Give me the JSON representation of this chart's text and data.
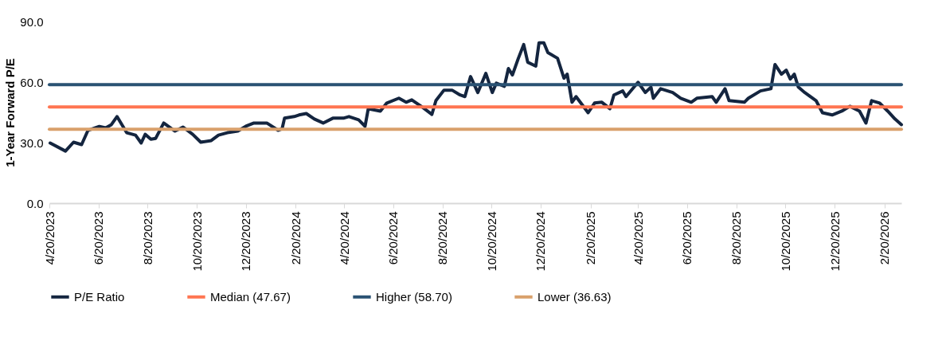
{
  "chart_data": {
    "type": "line",
    "ylabel": "1-Year Forward P/E",
    "xlim": [
      "2023-04-20",
      "2026-03-13"
    ],
    "ylim": [
      0,
      90
    ],
    "yticks": [
      {
        "value": 0,
        "label": "0.0"
      },
      {
        "value": 30,
        "label": "30.0"
      },
      {
        "value": 60,
        "label": "60.0"
      },
      {
        "value": 90,
        "label": "90.0"
      }
    ],
    "xticks": [
      {
        "value": "2023-04-20",
        "label": "4/20/2023"
      },
      {
        "value": "2023-06-20",
        "label": "6/20/2023"
      },
      {
        "value": "2023-08-20",
        "label": "8/20/2023"
      },
      {
        "value": "2023-10-20",
        "label": "10/20/2023"
      },
      {
        "value": "2023-12-20",
        "label": "12/20/2023"
      },
      {
        "value": "2024-02-20",
        "label": "2/20/2024"
      },
      {
        "value": "2024-04-20",
        "label": "4/20/2024"
      },
      {
        "value": "2024-06-20",
        "label": "6/20/2024"
      },
      {
        "value": "2024-08-20",
        "label": "8/20/2024"
      },
      {
        "value": "2024-10-20",
        "label": "10/20/2024"
      },
      {
        "value": "2024-12-20",
        "label": "12/20/2024"
      },
      {
        "value": "2025-02-20",
        "label": "2/20/2025"
      },
      {
        "value": "2025-04-20",
        "label": "4/20/2025"
      },
      {
        "value": "2025-06-20",
        "label": "6/20/2025"
      },
      {
        "value": "2025-08-20",
        "label": "8/20/2025"
      },
      {
        "value": "2025-10-20",
        "label": "10/20/2025"
      },
      {
        "value": "2025-12-20",
        "label": "12/20/2025"
      },
      {
        "value": "2026-02-20",
        "label": "2/20/2026"
      }
    ],
    "legend": "bottom",
    "series": [
      {
        "name": "P/E Ratio",
        "color": "#14253f",
        "x": [
          "2023-04-21",
          "2023-05-10",
          "2023-05-20",
          "2023-05-30",
          "2023-06-07",
          "2023-06-21",
          "2023-06-29",
          "2023-07-06",
          "2023-07-13",
          "2023-07-25",
          "2023-08-05",
          "2023-08-12",
          "2023-08-17",
          "2023-08-24",
          "2023-08-30",
          "2023-09-09",
          "2023-09-23",
          "2023-10-03",
          "2023-10-15",
          "2023-10-25",
          "2023-11-07",
          "2023-11-16",
          "2023-11-27",
          "2023-12-10",
          "2023-12-20",
          "2023-12-30",
          "2024-01-15",
          "2024-01-29",
          "2024-02-03",
          "2024-02-06",
          "2024-02-18",
          "2024-02-24",
          "2024-03-04",
          "2024-03-14",
          "2024-03-25",
          "2024-04-06",
          "2024-04-19",
          "2024-04-26",
          "2024-05-08",
          "2024-05-16",
          "2024-05-20",
          "2024-06-04",
          "2024-06-12",
          "2024-06-27",
          "2024-07-06",
          "2024-07-13",
          "2024-07-26",
          "2024-08-07",
          "2024-08-12",
          "2024-08-22",
          "2024-09-01",
          "2024-09-11",
          "2024-09-17",
          "2024-09-24",
          "2024-10-03",
          "2024-10-13",
          "2024-10-21",
          "2024-10-26",
          "2024-11-05",
          "2024-11-10",
          "2024-11-15",
          "2024-11-22",
          "2024-11-29",
          "2024-12-04",
          "2024-12-14",
          "2024-12-18",
          "2024-12-24",
          "2024-12-29",
          "2025-01-10",
          "2025-01-18",
          "2025-01-22",
          "2025-01-28",
          "2025-02-02",
          "2025-02-17",
          "2025-02-25",
          "2025-03-06",
          "2025-03-16",
          "2025-03-21",
          "2025-04-01",
          "2025-04-05",
          "2025-04-20",
          "2025-04-29",
          "2025-05-06",
          "2025-05-09",
          "2025-05-18",
          "2025-06-02",
          "2025-06-12",
          "2025-06-25",
          "2025-07-02",
          "2025-07-21",
          "2025-07-26",
          "2025-08-06",
          "2025-08-11",
          "2025-08-30",
          "2025-09-04",
          "2025-09-19",
          "2025-10-02",
          "2025-10-07",
          "2025-10-15",
          "2025-10-21",
          "2025-10-26",
          "2025-10-31",
          "2025-11-05",
          "2025-11-13",
          "2025-11-27",
          "2025-12-05",
          "2025-12-17",
          "2025-12-29",
          "2026-01-08",
          "2026-01-20",
          "2026-01-28",
          "2026-02-04",
          "2026-02-14",
          "2026-02-24",
          "2026-03-05",
          "2026-03-13"
        ],
        "values": [
          29.8,
          25.8,
          30.2,
          29,
          36.1,
          38,
          37.3,
          38.9,
          42.9,
          34.9,
          33.7,
          29.8,
          34.1,
          31.7,
          32.1,
          39.7,
          35.7,
          37.7,
          34.1,
          30.2,
          31,
          33.7,
          34.9,
          35.7,
          38.1,
          39.7,
          39.7,
          36.1,
          36.9,
          42.1,
          42.9,
          43.7,
          44.4,
          41.7,
          39.7,
          42.1,
          42.1,
          42.9,
          41.3,
          38.1,
          46.8,
          45.6,
          49.6,
          52,
          50,
          51.2,
          47.6,
          44,
          50.8,
          56,
          56,
          53.6,
          52.8,
          62.7,
          54.8,
          64.3,
          54.8,
          59.5,
          57.9,
          66.7,
          63.5,
          71.4,
          78.6,
          69.8,
          67.9,
          79.4,
          79.4,
          74.6,
          71.8,
          61.9,
          63.9,
          50,
          52.8,
          44.8,
          49.6,
          50,
          46.8,
          53.6,
          55.6,
          52.8,
          59.9,
          54.8,
          57.5,
          52,
          56.7,
          54.8,
          52,
          50,
          52,
          52.8,
          50,
          56.7,
          50.8,
          50,
          52,
          55.6,
          56.7,
          68.7,
          63.9,
          65.9,
          61.5,
          63.9,
          57.5,
          54.8,
          50.8,
          44.8,
          43.7,
          45.6,
          48,
          45.6,
          39.7,
          50.8,
          49.6,
          45.6,
          41.7,
          38.9
        ]
      },
      {
        "name": "Median (47.67)",
        "color": "#ff7551",
        "x": [
          "2023-04-20",
          "2026-03-13"
        ],
        "values": [
          47.67,
          47.67
        ]
      },
      {
        "name": "Higher (58.70)",
        "color": "#2a5273",
        "x": [
          "2023-04-20",
          "2026-03-13"
        ],
        "values": [
          58.7,
          58.7
        ]
      },
      {
        "name": "Lower (36.63)",
        "color": "#d9a06b",
        "x": [
          "2023-04-20",
          "2026-03-13"
        ],
        "values": [
          36.63,
          36.63
        ]
      }
    ]
  }
}
